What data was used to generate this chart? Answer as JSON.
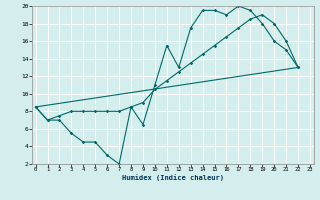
{
  "xlabel": "Humidex (Indice chaleur)",
  "bg_color": "#d4eeed",
  "line_color": "#006868",
  "xlim": [
    -0.3,
    23.3
  ],
  "ylim": [
    2,
    20
  ],
  "xticks": [
    0,
    1,
    2,
    3,
    4,
    5,
    6,
    7,
    8,
    9,
    10,
    11,
    12,
    13,
    14,
    15,
    16,
    17,
    18,
    19,
    20,
    21,
    22,
    23
  ],
  "yticks": [
    2,
    4,
    6,
    8,
    10,
    12,
    14,
    16,
    18,
    20
  ],
  "line1_x": [
    0,
    1,
    2,
    3,
    4,
    5,
    6,
    7,
    8,
    9,
    10,
    11,
    12,
    13,
    14,
    15,
    16,
    17,
    18,
    19,
    20,
    21,
    22
  ],
  "line1_y": [
    8.5,
    7,
    7,
    5.5,
    4.5,
    4.5,
    3,
    2,
    8.5,
    6.5,
    11,
    15.5,
    13,
    17.5,
    19.5,
    19.5,
    19,
    20,
    19.5,
    18,
    16,
    15,
    13
  ],
  "line2_x": [
    0,
    1,
    2,
    3,
    4,
    5,
    6,
    7,
    8,
    9,
    10,
    11,
    12,
    13,
    14,
    15,
    16,
    17,
    18,
    19,
    20,
    21,
    22
  ],
  "line2_y": [
    8.5,
    7,
    7.5,
    8,
    8,
    8,
    8,
    8,
    8.5,
    9,
    10.5,
    11.5,
    12.5,
    13.5,
    14.5,
    15.5,
    16.5,
    17.5,
    18.5,
    19,
    18,
    16,
    13
  ],
  "line3_x": [
    0,
    22
  ],
  "line3_y": [
    8.5,
    13
  ]
}
